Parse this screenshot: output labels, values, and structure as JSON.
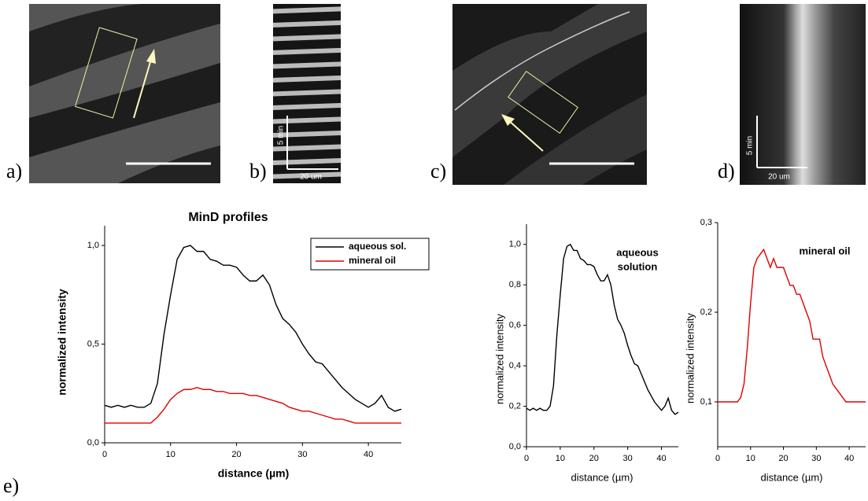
{
  "panel_labels": [
    "a)",
    "b)",
    "c)",
    "d)",
    "e)"
  ],
  "scale_labels": [
    "5 min",
    "20 um",
    "5 min",
    "20 um"
  ],
  "chart_data": [
    {
      "type": "line",
      "title": "MinD profiles",
      "xlabel": "distance (µm)",
      "ylabel": "normalized intensity",
      "x": [
        0,
        1,
        2,
        3,
        4,
        5,
        6,
        7,
        8,
        9,
        10,
        11,
        12,
        13,
        14,
        15,
        16,
        17,
        18,
        19,
        20,
        21,
        22,
        23,
        24,
        25,
        26,
        27,
        28,
        29,
        30,
        31,
        32,
        33,
        34,
        35,
        36,
        37,
        38,
        39,
        40,
        41,
        42,
        43,
        44,
        45
      ],
      "series": [
        {
          "name": "aqueous  sol.",
          "color": "#000000",
          "values": [
            0.19,
            0.18,
            0.19,
            0.18,
            0.19,
            0.18,
            0.18,
            0.2,
            0.3,
            0.55,
            0.75,
            0.93,
            0.99,
            1.0,
            0.97,
            0.97,
            0.93,
            0.92,
            0.9,
            0.9,
            0.89,
            0.85,
            0.82,
            0.82,
            0.85,
            0.8,
            0.7,
            0.63,
            0.6,
            0.56,
            0.5,
            0.45,
            0.41,
            0.4,
            0.36,
            0.32,
            0.28,
            0.25,
            0.22,
            0.2,
            0.18,
            0.2,
            0.24,
            0.18,
            0.16,
            0.17
          ]
        },
        {
          "name": "mineral oil",
          "color": "#e00000",
          "values": [
            0.1,
            0.1,
            0.1,
            0.1,
            0.1,
            0.1,
            0.1,
            0.1,
            0.13,
            0.17,
            0.22,
            0.25,
            0.27,
            0.27,
            0.28,
            0.27,
            0.27,
            0.26,
            0.26,
            0.25,
            0.25,
            0.25,
            0.24,
            0.24,
            0.23,
            0.22,
            0.21,
            0.2,
            0.18,
            0.17,
            0.16,
            0.16,
            0.15,
            0.14,
            0.13,
            0.12,
            0.12,
            0.11,
            0.1,
            0.1,
            0.1,
            0.1,
            0.1,
            0.1,
            0.1,
            0.1
          ]
        }
      ],
      "xlim": [
        0,
        45
      ],
      "xticks": [
        0,
        10,
        20,
        30,
        40
      ],
      "ylim": [
        0,
        1.1
      ],
      "yticks": [
        {
          "value": 0,
          "label": "0,0"
        },
        {
          "value": 0.5,
          "label": "0,5"
        },
        {
          "value": 1,
          "label": "1,0"
        }
      ],
      "legend": "upper right"
    },
    {
      "type": "line",
      "xlabel": "distance (µm)",
      "ylabel": "normalized intensity",
      "annotation": [
        "aqueous",
        "solution"
      ],
      "x": [
        0,
        1,
        2,
        3,
        4,
        5,
        6,
        7,
        8,
        9,
        10,
        11,
        12,
        13,
        14,
        15,
        16,
        17,
        18,
        19,
        20,
        21,
        22,
        23,
        24,
        25,
        26,
        27,
        28,
        29,
        30,
        31,
        32,
        33,
        34,
        35,
        36,
        37,
        38,
        39,
        40,
        41,
        42,
        43,
        44,
        45
      ],
      "series": [
        {
          "color": "#000000",
          "values": [
            0.19,
            0.18,
            0.19,
            0.18,
            0.19,
            0.18,
            0.18,
            0.2,
            0.3,
            0.55,
            0.75,
            0.93,
            0.99,
            1.0,
            0.97,
            0.97,
            0.93,
            0.92,
            0.9,
            0.9,
            0.89,
            0.85,
            0.82,
            0.82,
            0.85,
            0.8,
            0.7,
            0.63,
            0.6,
            0.56,
            0.5,
            0.45,
            0.41,
            0.4,
            0.36,
            0.32,
            0.28,
            0.25,
            0.22,
            0.2,
            0.18,
            0.2,
            0.24,
            0.18,
            0.16,
            0.17
          ]
        }
      ],
      "xlim": [
        0,
        45
      ],
      "xticks": [
        0,
        10,
        20,
        30,
        40
      ],
      "ylim": [
        0,
        1.1
      ],
      "yticks": [
        {
          "value": 0,
          "label": "0,0"
        },
        {
          "value": 0.2,
          "label": "0,2"
        },
        {
          "value": 0.4,
          "label": "0,4"
        },
        {
          "value": 0.6,
          "label": "0,6"
        },
        {
          "value": 0.8,
          "label": "0,8"
        },
        {
          "value": 1,
          "label": "1,0"
        }
      ]
    },
    {
      "type": "line",
      "xlabel": "distance (µm)",
      "ylabel": "normalized intensity",
      "annotation": [
        "mineral oil"
      ],
      "x": [
        0,
        1,
        2,
        3,
        4,
        5,
        6,
        7,
        8,
        9,
        10,
        11,
        12,
        13,
        14,
        15,
        16,
        17,
        18,
        19,
        20,
        21,
        22,
        23,
        24,
        25,
        26,
        27,
        28,
        29,
        30,
        31,
        32,
        33,
        34,
        35,
        36,
        37,
        38,
        39,
        40,
        41,
        42,
        43,
        44,
        45
      ],
      "series": [
        {
          "color": "#e00000",
          "values": [
            0.1,
            0.1,
            0.1,
            0.1,
            0.1,
            0.1,
            0.1,
            0.105,
            0.12,
            0.16,
            0.21,
            0.25,
            0.26,
            0.265,
            0.27,
            0.26,
            0.25,
            0.26,
            0.25,
            0.25,
            0.25,
            0.24,
            0.23,
            0.23,
            0.22,
            0.22,
            0.21,
            0.2,
            0.19,
            0.17,
            0.17,
            0.17,
            0.15,
            0.14,
            0.13,
            0.12,
            0.115,
            0.11,
            0.105,
            0.1,
            0.1,
            0.1,
            0.1,
            0.1,
            0.1,
            0.1
          ]
        }
      ],
      "xlim": [
        0,
        45
      ],
      "xticks": [
        0,
        10,
        20,
        30,
        40
      ],
      "ylim": [
        0.05,
        0.3
      ],
      "yticks": [
        {
          "value": 0.1,
          "label": "0,1"
        },
        {
          "value": 0.2,
          "label": "0,2"
        },
        {
          "value": 0.3,
          "label": "0,3"
        }
      ]
    }
  ]
}
